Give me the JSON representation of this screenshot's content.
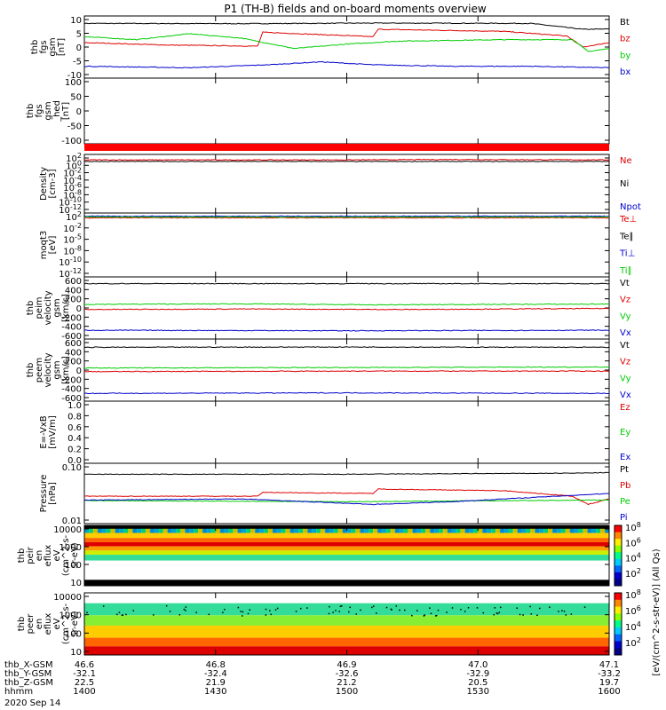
{
  "title": "P1 (TH-B) fields and on-board moments overview",
  "footer": {
    "rows": [
      {
        "name": "thb_X-GSM",
        "values": [
          "46.6",
          "46.8",
          "46.9",
          "47.0",
          "47.1"
        ]
      },
      {
        "name": "thb_Y-GSM",
        "values": [
          "-32.1",
          "-32.4",
          "-32.6",
          "-32.9",
          "-33.2"
        ]
      },
      {
        "name": "thb_Z-GSM",
        "values": [
          "22.5",
          "21.9",
          "21.2",
          "20.5",
          "19.7"
        ]
      },
      {
        "name": "hhmm",
        "values": [
          "1400",
          "1430",
          "1500",
          "1530",
          "1600"
        ]
      }
    ],
    "date": "2020 Sep 14"
  },
  "colorbar": {
    "label": "[eV/(cm^2-s-str-eV)] (All Qs)",
    "top_ticks": [
      "10^8",
      "10^6",
      "10^4",
      "10^2"
    ],
    "bottom_ticks": [
      "10^8",
      "10^6",
      "10^4",
      "10^2"
    ]
  },
  "chart_data": [
    {
      "type": "line",
      "name": "thb fgs gsm",
      "ylabel": [
        "thb",
        "fgs",
        "gsm",
        "[nT]"
      ],
      "yticks": [
        "10",
        "5",
        "0",
        "-5",
        "-10"
      ],
      "ylim": [
        -10,
        11
      ],
      "legend": [
        {
          "label": "Bt",
          "color": "#000000"
        },
        {
          "label": "bz",
          "color": "#dd0000"
        },
        {
          "label": "by",
          "color": "#00cc00"
        },
        {
          "label": "bx",
          "color": "#0000cc"
        }
      ],
      "x": [
        "1400",
        "1430",
        "1500",
        "1530",
        "1600"
      ],
      "series": [
        {
          "name": "Bt",
          "color": "#000000",
          "points": [
            [
              0,
              8.5
            ],
            [
              0.3,
              8.4
            ],
            [
              0.55,
              8.6
            ],
            [
              0.85,
              8.5
            ],
            [
              0.95,
              6.5
            ],
            [
              1,
              6.6
            ]
          ]
        },
        {
          "name": "bz",
          "color": "#dd0000",
          "points": [
            [
              0,
              2
            ],
            [
              0.15,
              1.2
            ],
            [
              0.33,
              0.8
            ],
            [
              0.34,
              5.5
            ],
            [
              0.55,
              4
            ],
            [
              0.56,
              6.5
            ],
            [
              0.8,
              5.8
            ],
            [
              0.92,
              4.2
            ],
            [
              0.95,
              0.5
            ],
            [
              1,
              2
            ]
          ]
        },
        {
          "name": "by",
          "color": "#00cc00",
          "points": [
            [
              0,
              4
            ],
            [
              0.1,
              3
            ],
            [
              0.2,
              5
            ],
            [
              0.3,
              3.5
            ],
            [
              0.4,
              0
            ],
            [
              0.5,
              1.5
            ],
            [
              0.6,
              2.5
            ],
            [
              0.8,
              3
            ],
            [
              0.93,
              3
            ],
            [
              0.96,
              -1
            ],
            [
              1,
              0
            ]
          ]
        },
        {
          "name": "bx",
          "color": "#0000cc",
          "points": [
            [
              0,
              -6
            ],
            [
              0.2,
              -6.5
            ],
            [
              0.35,
              -5.5
            ],
            [
              0.45,
              -4.5
            ],
            [
              0.55,
              -5.5
            ],
            [
              0.7,
              -6
            ],
            [
              0.85,
              -6
            ],
            [
              1,
              -6.5
            ]
          ]
        }
      ]
    },
    {
      "type": "line",
      "name": "thb fgs gsm_hed",
      "ylabel": [
        "thb",
        "fgs",
        "gsm",
        "_hed",
        "[nT]"
      ],
      "yticks": [
        "100",
        "50",
        "0",
        "-50",
        "-100"
      ],
      "ylim": [
        -130,
        120
      ],
      "legend": [],
      "series": []
    },
    {
      "type": "bar",
      "name": "flag bar",
      "legend": [],
      "series": [
        {
          "name": "flag",
          "color": "#ff0000",
          "points": [
            [
              0,
              1
            ],
            [
              1,
              1
            ]
          ]
        }
      ]
    },
    {
      "type": "line",
      "name": "Density",
      "scale": "log",
      "ylabel": [
        "Density",
        "[cm-3]"
      ],
      "yticks": [
        "10^2",
        "10^0",
        "10^-2",
        "10^-4",
        "10^-6",
        "10^-8",
        "10^-10",
        "10^-12"
      ],
      "ylim": [
        -13,
        2
      ],
      "legend": [
        {
          "label": "Ne",
          "color": "#dd0000"
        },
        {
          "label": "Ni",
          "color": "#000000"
        },
        {
          "label": "Npot",
          "color": "#0000cc"
        }
      ],
      "series": [
        {
          "name": "Ne",
          "color": "#dd0000",
          "points": [
            [
              0,
              0.6
            ],
            [
              0.5,
              0.6
            ],
            [
              0.7,
              0.7
            ],
            [
              1,
              0.6
            ]
          ]
        },
        {
          "name": "Ni",
          "color": "#000000",
          "points": [
            [
              0,
              0.2
            ],
            [
              1,
              0.2
            ]
          ]
        }
      ]
    },
    {
      "type": "line",
      "name": "moqt3",
      "scale": "log",
      "ylabel": [
        "moqt3",
        "[eV]"
      ],
      "yticks": [
        "10^2",
        "10^-2",
        "10^-5",
        "10^-8",
        "10^-10",
        "10^-12"
      ],
      "ylim": [
        -13,
        3
      ],
      "legend": [
        {
          "label": "Te⊥",
          "color": "#dd0000"
        },
        {
          "label": "Te∥",
          "color": "#000000"
        },
        {
          "label": "Ti⊥",
          "color": "#0000cc"
        },
        {
          "label": "Ti∥",
          "color": "#00cc00"
        }
      ],
      "series": [
        {
          "name": "Te",
          "color": "#dd0000",
          "points": [
            [
              0,
              1.8
            ],
            [
              1,
              1.8
            ]
          ]
        },
        {
          "name": "Ti",
          "color": "#0000cc",
          "points": [
            [
              0,
              2.2
            ],
            [
              1,
              2.2
            ]
          ]
        },
        {
          "name": "Til",
          "color": "#00cc00",
          "points": [
            [
              0,
              2.0
            ],
            [
              1,
              2.0
            ]
          ]
        }
      ]
    },
    {
      "type": "line",
      "name": "thb peim velocity gsm",
      "ylabel": [
        "thb",
        "peim",
        "velocity",
        "gsm",
        "[km/s]"
      ],
      "yticks": [
        "600",
        "400",
        "200",
        "0",
        "-200",
        "-400",
        "-600"
      ],
      "ylim": [
        -600,
        600
      ],
      "legend": [
        {
          "label": "Vt",
          "color": "#000000"
        },
        {
          "label": "Vz",
          "color": "#dd0000"
        },
        {
          "label": "Vy",
          "color": "#00cc00"
        },
        {
          "label": "Vx",
          "color": "#0000cc"
        }
      ],
      "series": [
        {
          "name": "Vt",
          "color": "#000000",
          "points": [
            [
              0,
              470
            ],
            [
              1,
              470
            ]
          ]
        },
        {
          "name": "Vz",
          "color": "#dd0000",
          "points": [
            [
              0,
              -30
            ],
            [
              0.3,
              -20
            ],
            [
              0.6,
              -30
            ],
            [
              1,
              -10
            ]
          ]
        },
        {
          "name": "Vy",
          "color": "#00cc00",
          "points": [
            [
              0,
              70
            ],
            [
              0.3,
              80
            ],
            [
              0.55,
              60
            ],
            [
              0.8,
              70
            ],
            [
              1,
              75
            ]
          ]
        },
        {
          "name": "Vx",
          "color": "#0000cc",
          "points": [
            [
              0,
              -430
            ],
            [
              0.5,
              -440
            ],
            [
              1,
              -430
            ]
          ]
        }
      ]
    },
    {
      "type": "line",
      "name": "thb peem velocity gsm",
      "ylabel": [
        "thb",
        "peem",
        "velocity",
        "gsm",
        "[km/s]"
      ],
      "yticks": [
        "600",
        "400",
        "200",
        "0",
        "-200",
        "-400",
        "-600"
      ],
      "ylim": [
        -600,
        600
      ],
      "legend": [
        {
          "label": "Vt",
          "color": "#000000"
        },
        {
          "label": "Vz",
          "color": "#dd0000"
        },
        {
          "label": "Vy",
          "color": "#00cc00"
        },
        {
          "label": "Vx",
          "color": "#0000cc"
        }
      ],
      "series": [
        {
          "name": "Vt",
          "color": "#000000",
          "points": [
            [
              0,
              440
            ],
            [
              0.5,
              445
            ],
            [
              1,
              440
            ]
          ]
        },
        {
          "name": "Vz",
          "color": "#dd0000",
          "points": [
            [
              0,
              -30
            ],
            [
              0.5,
              -20
            ],
            [
              1,
              -20
            ]
          ]
        },
        {
          "name": "Vy",
          "color": "#00cc00",
          "points": [
            [
              0,
              40
            ],
            [
              0.5,
              50
            ],
            [
              1,
              60
            ]
          ]
        },
        {
          "name": "Vx",
          "color": "#0000cc",
          "points": [
            [
              0,
              -450
            ],
            [
              0.5,
              -440
            ],
            [
              1,
              -450
            ]
          ]
        }
      ]
    },
    {
      "type": "line",
      "name": "E=-VxB",
      "ylabel": [
        "E=-VxB",
        "[mV/m]"
      ],
      "yticks": [
        "1.0",
        "0.8",
        "0.6",
        "0.4",
        "0.2",
        "0.0"
      ],
      "ylim": [
        0,
        1
      ],
      "legend": [
        {
          "label": "Ez",
          "color": "#dd0000"
        },
        {
          "label": "Ey",
          "color": "#00cc00"
        },
        {
          "label": "Ex",
          "color": "#0000cc"
        }
      ],
      "series": []
    },
    {
      "type": "line",
      "name": "Pressure",
      "scale": "log",
      "ylabel": [
        "Pressure",
        "[nPa]"
      ],
      "yticks": [
        "0.10",
        "0.01"
      ],
      "ylim": [
        -2.05,
        -0.95
      ],
      "legend": [
        {
          "label": "Pt",
          "color": "#000000"
        },
        {
          "label": "Pb",
          "color": "#dd0000"
        },
        {
          "label": "Pe",
          "color": "#00cc00"
        },
        {
          "label": "Pi",
          "color": "#0000cc"
        }
      ],
      "series": [
        {
          "name": "Pt",
          "color": "#000000",
          "points": [
            [
              0,
              -1.15
            ],
            [
              0.5,
              -1.15
            ],
            [
              0.93,
              -1.13
            ],
            [
              1,
              -1.12
            ]
          ]
        },
        {
          "name": "Pb",
          "color": "#dd0000",
          "points": [
            [
              0,
              -1.55
            ],
            [
              0.33,
              -1.55
            ],
            [
              0.34,
              -1.48
            ],
            [
              0.55,
              -1.5
            ],
            [
              0.56,
              -1.42
            ],
            [
              0.8,
              -1.45
            ],
            [
              0.93,
              -1.55
            ],
            [
              0.96,
              -1.7
            ],
            [
              1,
              -1.6
            ]
          ]
        },
        {
          "name": "Pe",
          "color": "#00cc00",
          "points": [
            [
              0,
              -1.63
            ],
            [
              0.5,
              -1.65
            ],
            [
              1,
              -1.62
            ]
          ]
        },
        {
          "name": "Pi",
          "color": "#0000cc",
          "points": [
            [
              0,
              -1.62
            ],
            [
              0.3,
              -1.6
            ],
            [
              0.55,
              -1.7
            ],
            [
              0.7,
              -1.65
            ],
            [
              0.9,
              -1.55
            ],
            [
              1,
              -1.5
            ]
          ]
        }
      ]
    },
    {
      "type": "heatmap",
      "name": "thb peir en eflux",
      "ylabel": [
        "thb",
        "peir",
        "en",
        "eflux",
        "eV",
        "(cm^2-s-",
        "sr-eV)"
      ],
      "yticks": [
        "10000",
        "1000",
        "100",
        "10"
      ],
      "ylim": [
        0.7,
        4.3
      ]
    },
    {
      "type": "heatmap",
      "name": "thb peer en eflux",
      "ylabel": [
        "thb",
        "peer",
        "en",
        "eflux",
        "eV",
        "(cm^2-s-",
        "sr-eV)"
      ],
      "yticks": [
        "10000",
        "1000",
        "100",
        "10"
      ],
      "ylim": [
        0.7,
        4.3
      ]
    }
  ]
}
